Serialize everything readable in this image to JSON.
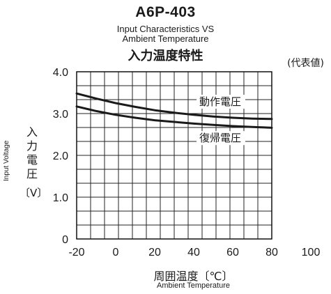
{
  "header": {
    "model": "A6P-403",
    "subtitle_line1": "Input Characteristics VS",
    "subtitle_line2": "Ambient Temperature",
    "title_jp": "入力温度特性",
    "note": "(代表値)"
  },
  "axes": {
    "ylabel_en": "Input Voltage",
    "ylabel_jp": "入力電圧",
    "ylabel_unit": "〔V〕",
    "xlabel_jp": "周囲温度〔℃〕",
    "xlabel_en": "Ambient Temperature"
  },
  "chart_data": {
    "type": "line",
    "title": "A6P-403",
    "xlabel": "周囲温度〔℃〕",
    "ylabel": "入力電圧〔V〕",
    "xlim": [
      -20,
      100
    ],
    "ylim": [
      0,
      4.0
    ],
    "xticks": [
      -20,
      0,
      20,
      40,
      60,
      80,
      100
    ],
    "yticks": [
      0,
      1.0,
      2.0,
      3.0,
      4.0
    ],
    "ytick_labels": [
      "0",
      "1.0",
      "2.0",
      "3.0",
      "4.0"
    ],
    "grid": true,
    "series": [
      {
        "name": "動作電圧",
        "x": [
          -20,
          -10,
          0,
          10,
          20,
          30,
          40,
          50,
          60,
          70,
          80
        ],
        "values": [
          3.48,
          3.36,
          3.25,
          3.16,
          3.08,
          3.02,
          2.97,
          2.93,
          2.9,
          2.88,
          2.87
        ]
      },
      {
        "name": "復帰電圧",
        "x": [
          -20,
          -10,
          0,
          10,
          20,
          30,
          40,
          50,
          60,
          70,
          80
        ],
        "values": [
          3.17,
          3.06,
          2.97,
          2.9,
          2.84,
          2.8,
          2.76,
          2.73,
          2.7,
          2.68,
          2.66
        ]
      }
    ]
  }
}
